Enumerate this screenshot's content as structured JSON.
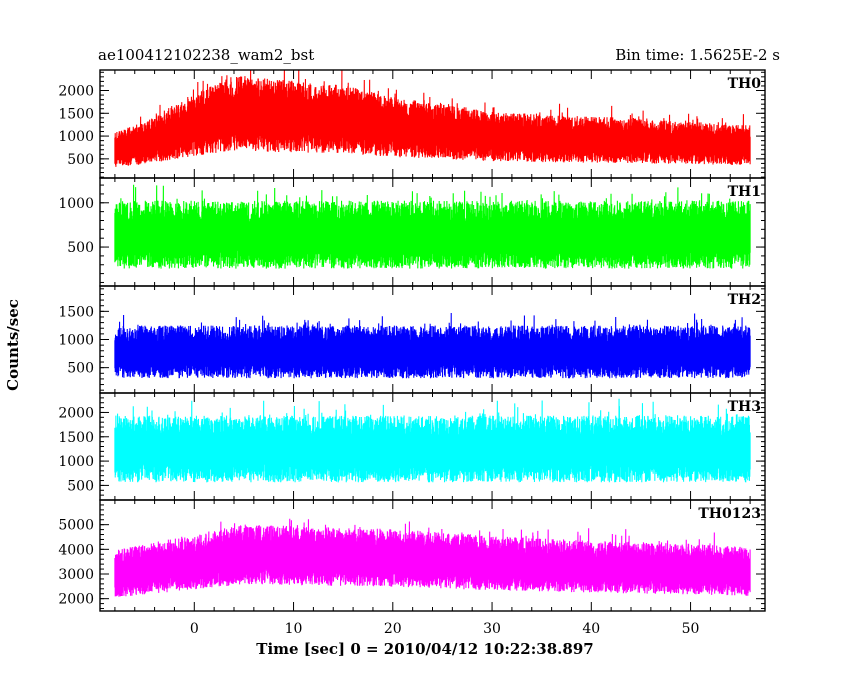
{
  "chart_data": {
    "type": "line",
    "title_left": "ae100412102238_wam2_bst",
    "title_right": "Bin time: 1.5625E-2 s",
    "xlabel": "Time [sec] 0 = 2010/04/12 10:22:38.897",
    "ylabel": "Counts/sec",
    "xlim": [
      -9.5,
      57.5
    ],
    "x_ticks": [
      0,
      10,
      20,
      30,
      40,
      50
    ],
    "x_data_range": [
      -8,
      56
    ],
    "bin_time_s": 0.015625,
    "grid": false,
    "panels": [
      {
        "name": "TH0",
        "color": "#ff0000",
        "ylim": [
          80,
          2450
        ],
        "y_ticks": [
          500,
          1000,
          1500,
          2000
        ],
        "baseline": [
          [
            -8,
            700
          ],
          [
            -5,
            850
          ],
          [
            0,
            1250
          ],
          [
            4,
            1500
          ],
          [
            8,
            1450
          ],
          [
            12,
            1400
          ],
          [
            16,
            1350
          ],
          [
            20,
            1200
          ],
          [
            25,
            1100
          ],
          [
            30,
            1000
          ],
          [
            35,
            950
          ],
          [
            40,
            920
          ],
          [
            45,
            900
          ],
          [
            50,
            850
          ],
          [
            56,
            800
          ]
        ],
        "spread": 0.55
      },
      {
        "name": "TH1",
        "color": "#00ff00",
        "ylim": [
          60,
          1280
        ],
        "y_ticks": [
          500,
          1000
        ],
        "baseline": [
          [
            -8,
            640
          ],
          [
            56,
            640
          ]
        ],
        "spread": 0.6
      },
      {
        "name": "TH2",
        "color": "#0000ff",
        "ylim": [
          50,
          1950
        ],
        "y_ticks": [
          500,
          1000,
          1500
        ],
        "baseline": [
          [
            -8,
            780
          ],
          [
            56,
            780
          ]
        ],
        "spread": 0.6
      },
      {
        "name": "TH3",
        "color": "#00ffff",
        "ylim": [
          200,
          2400
        ],
        "y_ticks": [
          500,
          1000,
          1500,
          2000
        ],
        "baseline": [
          [
            -8,
            1250
          ],
          [
            56,
            1250
          ]
        ],
        "spread": 0.55
      },
      {
        "name": "TH0123",
        "color": "#ff00ff",
        "ylim": [
          1500,
          6000
        ],
        "y_ticks": [
          2000,
          3000,
          4000,
          5000
        ],
        "baseline": [
          [
            -8,
            3000
          ],
          [
            0,
            3500
          ],
          [
            5,
            3800
          ],
          [
            10,
            3750
          ],
          [
            20,
            3650
          ],
          [
            30,
            3450
          ],
          [
            40,
            3300
          ],
          [
            50,
            3200
          ],
          [
            56,
            3100
          ]
        ],
        "spread": 0.32
      }
    ]
  }
}
